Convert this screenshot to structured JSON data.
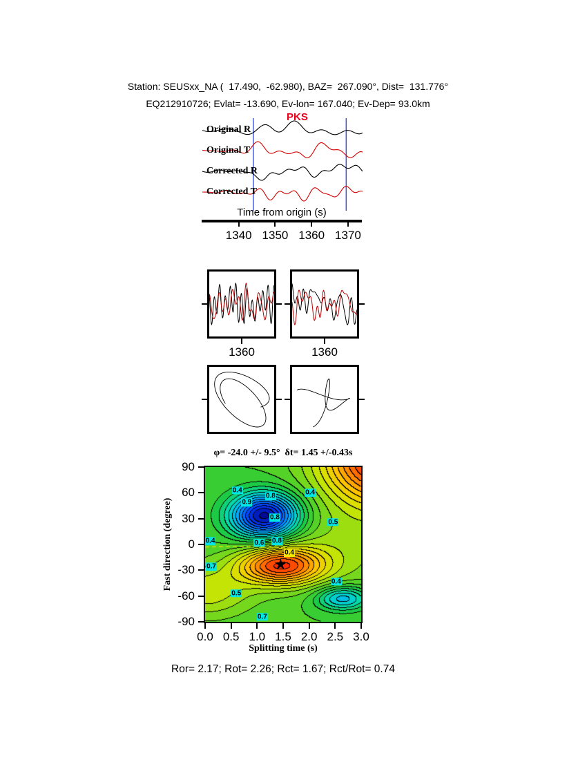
{
  "header": {
    "line1": "Station: SEUSxx_NA (  17.490,  -62.980), BAZ=  267.090°, Dist=  131.776°",
    "line2": "EQ212910726; Evlat= -13.690, Ev-lon= 167.040; Ev-Dep= 93.0km"
  },
  "footer": {
    "stats": "Ror= 2.17; Rot= 2.26; Rct= 1.67; Rct/Rot= 0.74"
  },
  "style": {
    "marker_blue": "#3c50c8",
    "trace_black": "#000000",
    "trace_red": "#d40000",
    "dashed_line": "#e0e000",
    "label_bg": "#00e5e5"
  },
  "chart_data": [
    {
      "type": "line",
      "id": "seismogram-panel",
      "phase_label": "PKS",
      "phase_label_color": "#e8001c",
      "xlabel": "Time from origin (s)",
      "x_range": [
        1330,
        1374
      ],
      "xticks": [
        1340,
        1350,
        1360,
        1370
      ],
      "window_markers": [
        1344,
        1369.5
      ],
      "series": [
        {
          "name": "Original R",
          "color": "#000000",
          "seed": 11
        },
        {
          "name": "Original T",
          "color": "#d40000",
          "seed": 22
        },
        {
          "name": "Corrected R",
          "color": "#000000",
          "seed": 33
        },
        {
          "name": "Corrected T",
          "color": "#d40000",
          "seed": 44
        }
      ]
    },
    {
      "type": "line",
      "id": "windowed-waveform-pair",
      "panels": [
        {
          "xtick": "1360",
          "series": [
            {
              "color": "#000000",
              "seed": 3
            },
            {
              "color": "#b40000",
              "seed": 14
            }
          ]
        },
        {
          "xtick": "1360",
          "series": [
            {
              "color": "#000000",
              "seed": 7
            },
            {
              "color": "#b40000",
              "seed": 18
            }
          ]
        }
      ]
    },
    {
      "type": "scatter",
      "id": "particle-motion-pair",
      "panels": [
        {
          "seed": 91
        },
        {
          "seed": 135
        }
      ]
    },
    {
      "type": "heatmap",
      "id": "splitting-misfit-contour",
      "title": "φ= -24.0 +/- 9.5°  δt= 1.45 +/-0.43s",
      "xlabel": "Splitting time (s)",
      "ylabel": "Fast direction (degree)",
      "xlim": [
        0,
        3
      ],
      "ylim": [
        -90,
        90
      ],
      "xticks": [
        "0.0",
        "0.5",
        "1.0",
        "1.5",
        "2.0",
        "2.5",
        "3.0"
      ],
      "yticks": [
        90,
        60,
        30,
        0,
        -30,
        -60,
        -90
      ],
      "grid": false,
      "best_solution": {
        "phi": -24.0,
        "phi_err": 9.5,
        "dt": 1.45,
        "dt_err": 0.43
      },
      "star_glyph": "★",
      "levels": 26,
      "value_range": [
        -1.55,
        1.55
      ],
      "field_features": [
        {
          "a": -1.5,
          "x": 1.15,
          "y": 33,
          "sx": 0.65,
          "sy": 26
        },
        {
          "a": 1.25,
          "x": 1.45,
          "y": -25,
          "sx": 0.8,
          "sy": 22
        },
        {
          "a": 1.6,
          "x": 3.5,
          "y": 100,
          "sx": 1.2,
          "sy": 55
        },
        {
          "a": -0.7,
          "x": 2.65,
          "y": -63,
          "sx": 0.5,
          "sy": 14
        },
        {
          "a": 0.45,
          "x": 0.0,
          "y": -55,
          "sx": 0.9,
          "sy": 30
        },
        {
          "a": 0.25,
          "x": 2.6,
          "y": -8,
          "sx": 1.3,
          "sy": 45
        }
      ],
      "colormap_stops": [
        [
          0.0,
          0,
          0,
          130
        ],
        [
          0.12,
          0,
          60,
          255
        ],
        [
          0.25,
          0,
          170,
          255
        ],
        [
          0.35,
          0,
          220,
          190
        ],
        [
          0.45,
          30,
          200,
          60
        ],
        [
          0.55,
          110,
          215,
          30
        ],
        [
          0.65,
          210,
          230,
          0
        ],
        [
          0.75,
          255,
          195,
          0
        ],
        [
          0.85,
          255,
          120,
          0
        ],
        [
          0.94,
          255,
          45,
          0
        ],
        [
          1.0,
          215,
          0,
          0
        ]
      ],
      "contour_labels": [
        {
          "text": "0.4",
          "x": 0.62,
          "y": 63
        },
        {
          "text": "0.9",
          "x": 0.8,
          "y": 49
        },
        {
          "text": "0.8",
          "x": 1.26,
          "y": 56
        },
        {
          "text": "0.4",
          "x": 2.02,
          "y": 60
        },
        {
          "text": "0.8",
          "x": 1.34,
          "y": 31
        },
        {
          "text": "0.5",
          "x": 2.46,
          "y": 26
        },
        {
          "text": "0.4",
          "x": 0.1,
          "y": 4
        },
        {
          "text": "0.6",
          "x": 1.04,
          "y": 2
        },
        {
          "text": "0.8",
          "x": 1.38,
          "y": 4
        },
        {
          "text": "0.4",
          "x": 1.62,
          "y": -10,
          "bg": "#f4e800"
        },
        {
          "text": "0.7",
          "x": 0.12,
          "y": -26
        },
        {
          "text": "0.5",
          "x": 0.6,
          "y": -57
        },
        {
          "text": "0.4",
          "x": 2.52,
          "y": -43
        },
        {
          "text": "0.7",
          "x": 1.1,
          "y": -84
        }
      ]
    }
  ]
}
